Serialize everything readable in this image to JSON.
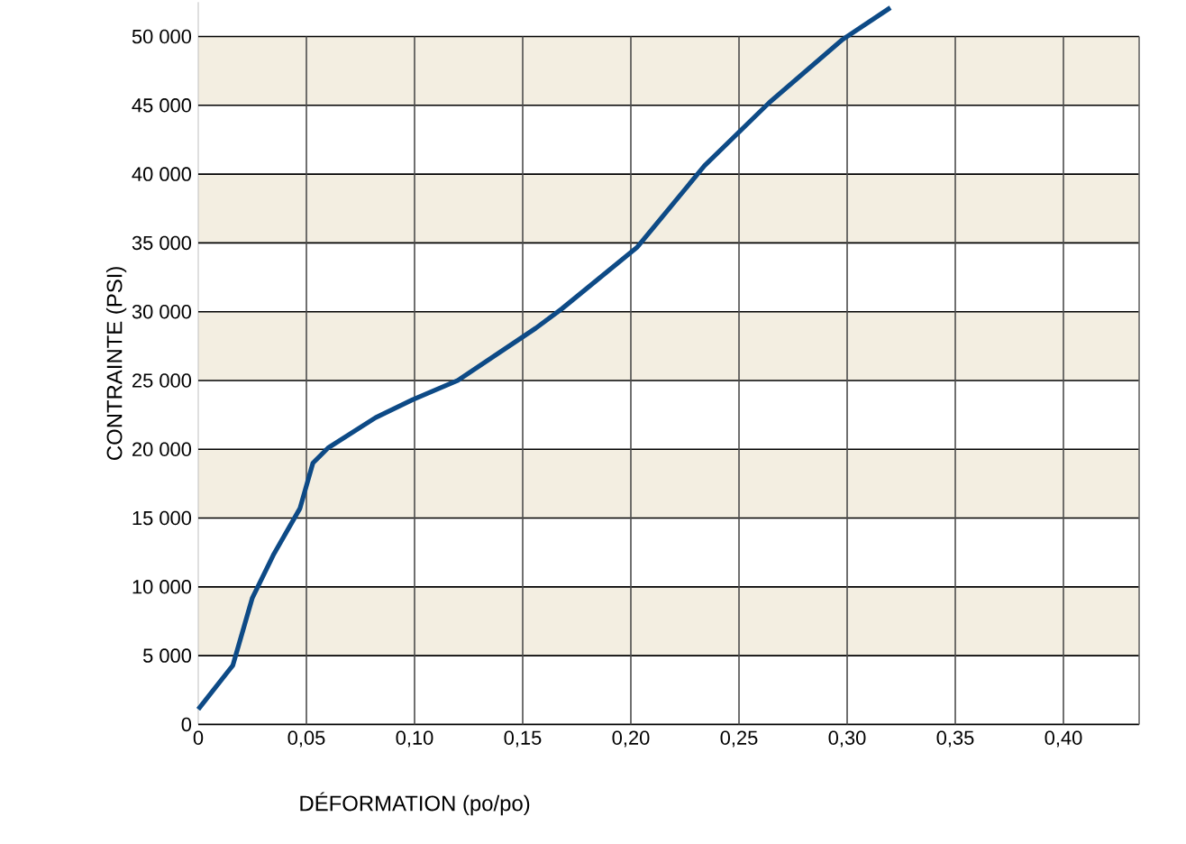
{
  "chart_data": {
    "type": "line",
    "xlabel": "DÉFORMATION (po/po)",
    "ylabel": "CONTRAINTE (PSI)",
    "xlim": [
      0,
      0.435
    ],
    "ylim": [
      0,
      52500
    ],
    "xticks": [
      0,
      {
        "value": 0.05,
        "label": "0,05"
      },
      {
        "value": 0.1,
        "label": "0,10"
      },
      {
        "value": 0.15,
        "label": "0,15"
      },
      {
        "value": 0.2,
        "label": "0,20"
      },
      {
        "value": 0.25,
        "label": "0,25"
      },
      {
        "value": 0.3,
        "label": "0,30"
      },
      {
        "value": 0.35,
        "label": "0,35"
      },
      {
        "value": 0.4,
        "label": "0,40"
      }
    ],
    "yticks": [
      0,
      {
        "value": 5000,
        "label": "5 000"
      },
      {
        "value": 10000,
        "label": "10 000"
      },
      {
        "value": 15000,
        "label": "15 000"
      },
      {
        "value": 20000,
        "label": "20 000"
      },
      {
        "value": 25000,
        "label": "25 000"
      },
      {
        "value": 30000,
        "label": "30 000"
      },
      {
        "value": 35000,
        "label": "35 000"
      },
      {
        "value": 40000,
        "label": "40 000"
      },
      {
        "value": 45000,
        "label": "45 000"
      },
      {
        "value": 50000,
        "label": "50 000"
      }
    ],
    "grid": true,
    "marker": "none",
    "line_style": "solid",
    "bands": [
      {
        "axis": "y",
        "from": 5000,
        "to": 10000,
        "color": "#f3eee1"
      },
      {
        "axis": "y",
        "from": 15000,
        "to": 20000,
        "color": "#f3eee1"
      },
      {
        "axis": "y",
        "from": 25000,
        "to": 30000,
        "color": "#f3eee1"
      },
      {
        "axis": "y",
        "from": 35000,
        "to": 40000,
        "color": "#f3eee1"
      },
      {
        "axis": "y",
        "from": 45000,
        "to": 50000,
        "color": "#f3eee1"
      }
    ],
    "series": [
      {
        "color": "#0d4a86",
        "x": [
          0,
          0.016,
          0.025,
          0.035,
          0.047,
          0.053,
          0.06,
          0.082,
          0.099,
          0.12,
          0.156,
          0.168,
          0.203,
          0.234,
          0.264,
          0.298,
          0.32
        ],
        "values": [
          1100,
          4300,
          9200,
          12400,
          15700,
          19000,
          20100,
          22300,
          23600,
          25000,
          28800,
          30200,
          34700,
          40600,
          45200,
          49800,
          52100
        ]
      }
    ]
  }
}
